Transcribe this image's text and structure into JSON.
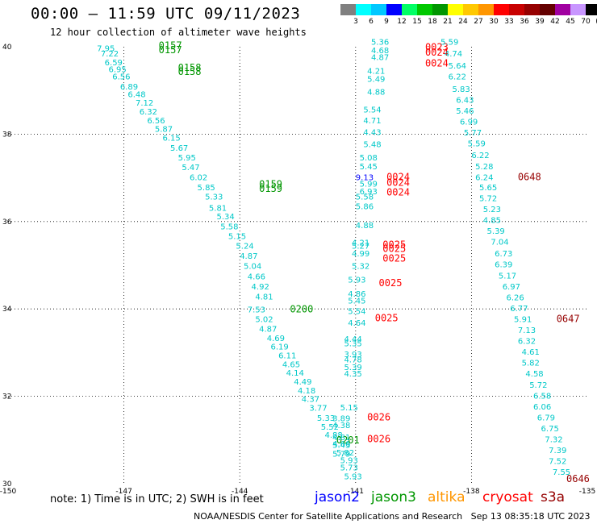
{
  "header": {
    "title": "00:00 – 11:59 UTC 09/11/2023",
    "subtitle": "12 hour collection of altimeter wave heights"
  },
  "color_scale": {
    "labels": [
      "3",
      "6",
      "9",
      "12",
      "15",
      "18",
      "21",
      "24",
      "27",
      "30",
      "33",
      "36",
      "39",
      "42",
      "45",
      "70",
      "(ft)"
    ],
    "colors": [
      "#808080",
      "#00ffff",
      "#00c8ff",
      "#0000ff",
      "#00ff64",
      "#00c800",
      "#009600",
      "#ffff00",
      "#ffc800",
      "#ff9600",
      "#ff0000",
      "#c80000",
      "#960000",
      "#640000",
      "#a000a0",
      "#c896ff",
      "#000000"
    ]
  },
  "footer": {
    "note": "note: 1) Time is in UTC; 2) SWH is in feet",
    "credit": "NOAA/NESDIS Center for Satellite Applications and Research",
    "timestamp": "Sep 13 08:35:18 UTC 2023"
  },
  "satellites": [
    {
      "name": "jason2",
      "color": "#0000ff"
    },
    {
      "name": "jason3",
      "color": "#009600"
    },
    {
      "name": "altika",
      "color": "#ff9600"
    },
    {
      "name": "cryosat",
      "color": "#ff0000"
    },
    {
      "name": "s3a",
      "color": "#960000"
    }
  ],
  "chart_data": {
    "type": "scatter",
    "title": "12 hour collection of altimeter wave heights",
    "xlabel": "",
    "ylabel": "",
    "xlim": [
      -150,
      -135
    ],
    "ylim": [
      30,
      40
    ],
    "x_ticks": [
      "-150",
      "-147",
      "-144",
      "-141",
      "-138",
      "-135"
    ],
    "x_tick_values": [
      -150,
      -147,
      -144,
      -141,
      -138,
      -135
    ],
    "y_ticks": [
      "30",
      "32",
      "34",
      "36",
      "38",
      "40"
    ],
    "y_tick_values": [
      30,
      32,
      34,
      36,
      38,
      40
    ],
    "grid": true,
    "value_color": "#00c8c8",
    "tracks": [
      {
        "satellite": "jason3",
        "points": [
          {
            "lon": -147.7,
            "lat": 39.9,
            "value": "7.95"
          },
          {
            "lon": -147.6,
            "lat": 39.78,
            "value": "7.22"
          },
          {
            "lon": -147.5,
            "lat": 39.58,
            "value": "6.59"
          },
          {
            "lon": -147.4,
            "lat": 39.42,
            "value": "6.95"
          },
          {
            "lon": -147.3,
            "lat": 39.25,
            "value": "6.56"
          },
          {
            "lon": -147.1,
            "lat": 39.02,
            "value": "6.89"
          },
          {
            "lon": -146.9,
            "lat": 38.85,
            "value": "6.48"
          },
          {
            "lon": -146.7,
            "lat": 38.65,
            "value": "7.12"
          },
          {
            "lon": -146.6,
            "lat": 38.45,
            "value": "6.32"
          },
          {
            "lon": -146.4,
            "lat": 38.25,
            "value": "6.56"
          },
          {
            "lon": -146.2,
            "lat": 38.05,
            "value": "5.87"
          },
          {
            "lon": -146.0,
            "lat": 37.85,
            "value": "6.15"
          },
          {
            "lon": -145.8,
            "lat": 37.62,
            "value": "5.67"
          },
          {
            "lon": -145.6,
            "lat": 37.4,
            "value": "5.95"
          },
          {
            "lon": -145.5,
            "lat": 37.18,
            "value": "5.47"
          },
          {
            "lon": -145.3,
            "lat": 36.95,
            "value": "6.02"
          },
          {
            "lon": -145.1,
            "lat": 36.72,
            "value": "5.85"
          },
          {
            "lon": -144.9,
            "lat": 36.5,
            "value": "5.33"
          },
          {
            "lon": -144.8,
            "lat": 36.25,
            "value": "5.81"
          },
          {
            "lon": -144.6,
            "lat": 36.05,
            "value": "5.34"
          },
          {
            "lon": -144.5,
            "lat": 35.82,
            "value": "5.58"
          },
          {
            "lon": -144.3,
            "lat": 35.6,
            "value": "5.15"
          },
          {
            "lon": -144.1,
            "lat": 35.38,
            "value": "5.24"
          },
          {
            "lon": -144.0,
            "lat": 35.15,
            "value": "4.87"
          },
          {
            "lon": -143.9,
            "lat": 34.92,
            "value": "5.04"
          },
          {
            "lon": -143.8,
            "lat": 34.68,
            "value": "4.66"
          },
          {
            "lon": -143.7,
            "lat": 34.45,
            "value": "4.92"
          },
          {
            "lon": -143.6,
            "lat": 34.22,
            "value": "4.81"
          },
          {
            "lon": -143.8,
            "lat": 33.92,
            "value": "7.53"
          },
          {
            "lon": -143.6,
            "lat": 33.7,
            "value": "5.02"
          },
          {
            "lon": -143.5,
            "lat": 33.48,
            "value": "4.87"
          },
          {
            "lon": -143.3,
            "lat": 33.27,
            "value": "4.69"
          },
          {
            "lon": -143.2,
            "lat": 33.07,
            "value": "6.19"
          },
          {
            "lon": -143.0,
            "lat": 32.87,
            "value": "6.11"
          },
          {
            "lon": -142.9,
            "lat": 32.67,
            "value": "4.65"
          },
          {
            "lon": -142.8,
            "lat": 32.47,
            "value": "4.14"
          },
          {
            "lon": -142.6,
            "lat": 32.27,
            "value": "4.49"
          },
          {
            "lon": -142.5,
            "lat": 32.07,
            "value": "4.18"
          },
          {
            "lon": -142.4,
            "lat": 31.87,
            "value": "4.37"
          },
          {
            "lon": -142.2,
            "lat": 31.67,
            "value": "3.77"
          },
          {
            "lon": -142.0,
            "lat": 31.44,
            "value": "5.33"
          },
          {
            "lon": -141.9,
            "lat": 31.24,
            "value": "5.52"
          },
          {
            "lon": -141.8,
            "lat": 31.05,
            "value": "4.88"
          },
          {
            "lon": -141.6,
            "lat": 30.85,
            "value": "4.66"
          },
          {
            "lon": -141.5,
            "lat": 30.65,
            "value": "5.82"
          },
          {
            "lon": -141.4,
            "lat": 30.47,
            "value": "5.93"
          },
          {
            "lon": -141.4,
            "lat": 30.3,
            "value": "5.73"
          },
          {
            "lon": -141.3,
            "lat": 30.1,
            "value": "5.93"
          },
          {
            "lon": -141.4,
            "lat": 29.95,
            "value": "4.84"
          },
          {
            "lon": -141.2,
            "lat": 29.92,
            "value": "5.34"
          }
        ],
        "time_labels": [
          {
            "lon": -146.1,
            "lat": 39.95,
            "label": "0157"
          },
          {
            "lon": -146.1,
            "lat": 39.85,
            "label": "0157"
          },
          {
            "lon": -145.6,
            "lat": 39.45,
            "label": "0158"
          },
          {
            "lon": -145.6,
            "lat": 39.35,
            "label": "0158"
          },
          {
            "lon": -143.5,
            "lat": 36.78,
            "label": "0159"
          },
          {
            "lon": -143.5,
            "lat": 36.68,
            "label": "0159"
          },
          {
            "lon": -142.7,
            "lat": 33.92,
            "label": "0200"
          },
          {
            "lon": -141.5,
            "lat": 30.92,
            "label": "0201"
          }
        ]
      },
      {
        "satellite": "jason3",
        "points": [
          {
            "lon": -141.4,
            "lat": 31.68,
            "value": "5.15"
          },
          {
            "lon": -141.6,
            "lat": 31.43,
            "value": "3.89"
          },
          {
            "lon": -141.6,
            "lat": 31.27,
            "value": "4.38"
          },
          {
            "lon": -141.6,
            "lat": 31.0,
            "value": "4.81"
          },
          {
            "lon": -141.6,
            "lat": 30.82,
            "value": "5.43"
          },
          {
            "lon": -141.6,
            "lat": 30.62,
            "value": "5.79"
          },
          {
            "lon": -141.3,
            "lat": 32.6,
            "value": "5.39"
          },
          {
            "lon": -141.3,
            "lat": 32.45,
            "value": "4.35"
          },
          {
            "lon": -141.3,
            "lat": 32.9,
            "value": "3.93"
          },
          {
            "lon": -141.3,
            "lat": 32.78,
            "value": "4.78"
          },
          {
            "lon": -141.3,
            "lat": 33.25,
            "value": "4.44"
          },
          {
            "lon": -141.3,
            "lat": 33.15,
            "value": "5.35"
          },
          {
            "lon": -141.2,
            "lat": 33.62,
            "value": "4.64"
          },
          {
            "lon": -141.2,
            "lat": 33.88,
            "value": "5.54"
          },
          {
            "lon": -141.2,
            "lat": 34.12,
            "value": "5.45"
          },
          {
            "lon": -141.2,
            "lat": 34.28,
            "value": "4.86"
          },
          {
            "lon": -141.2,
            "lat": 34.6,
            "value": "5.93"
          },
          {
            "lon": -141.1,
            "lat": 34.92,
            "value": "5.32"
          },
          {
            "lon": -141.1,
            "lat": 35.2,
            "value": "4.99"
          },
          {
            "lon": -141.1,
            "lat": 35.45,
            "value": "4.21"
          },
          {
            "lon": -141.1,
            "lat": 35.38,
            "value": "5.27"
          },
          {
            "lon": -141.0,
            "lat": 35.85,
            "value": "4.88"
          },
          {
            "lon": -141.0,
            "lat": 36.28,
            "value": "5.86"
          },
          {
            "lon": -141.0,
            "lat": 36.5,
            "value": "5.58"
          },
          {
            "lon": -140.9,
            "lat": 36.62,
            "value": "6.93"
          },
          {
            "lon": -140.9,
            "lat": 36.8,
            "value": "5.99"
          },
          {
            "lon": -140.9,
            "lat": 37.2,
            "value": "5.45"
          },
          {
            "lon": -140.9,
            "lat": 37.4,
            "value": "5.08"
          },
          {
            "lon": -140.8,
            "lat": 37.7,
            "value": "5.48"
          },
          {
            "lon": -140.8,
            "lat": 37.98,
            "value": "4.43"
          },
          {
            "lon": -140.8,
            "lat": 38.25,
            "value": "4.71"
          },
          {
            "lon": -140.8,
            "lat": 38.5,
            "value": "5.54"
          },
          {
            "lon": -140.7,
            "lat": 38.9,
            "value": "4.88"
          },
          {
            "lon": -140.7,
            "lat": 39.2,
            "value": "5.49"
          },
          {
            "lon": -140.7,
            "lat": 39.38,
            "value": "4.21"
          },
          {
            "lon": -140.6,
            "lat": 39.7,
            "value": "4.87"
          },
          {
            "lon": -140.6,
            "lat": 39.85,
            "value": "4.68"
          },
          {
            "lon": -140.6,
            "lat": 40.05,
            "value": "5.36"
          }
        ],
        "time_labels": []
      },
      {
        "satellite": "jason2",
        "points": [
          {
            "lon": -141.0,
            "lat": 36.95,
            "value": "9.13"
          }
        ],
        "time_labels": []
      },
      {
        "satellite": "cryosat",
        "points": [],
        "time_labels": [
          {
            "lon": -139.2,
            "lat": 39.92,
            "label": "0023"
          },
          {
            "lon": -139.2,
            "lat": 39.8,
            "label": "0024"
          },
          {
            "lon": -139.2,
            "lat": 39.55,
            "label": "0024"
          },
          {
            "lon": -140.2,
            "lat": 36.95,
            "label": "0024"
          },
          {
            "lon": -140.2,
            "lat": 36.82,
            "label": "0024"
          },
          {
            "lon": -140.2,
            "lat": 36.6,
            "label": "0024"
          },
          {
            "lon": -140.3,
            "lat": 35.4,
            "label": "0025"
          },
          {
            "lon": -140.3,
            "lat": 35.3,
            "label": "0025"
          },
          {
            "lon": -140.3,
            "lat": 35.08,
            "label": "0025"
          },
          {
            "lon": -140.4,
            "lat": 34.52,
            "label": "0025"
          },
          {
            "lon": -140.5,
            "lat": 33.72,
            "label": "0025"
          },
          {
            "lon": -140.7,
            "lat": 31.45,
            "label": "0026"
          },
          {
            "lon": -140.7,
            "lat": 30.95,
            "label": "0026"
          }
        ]
      },
      {
        "satellite": "s3a",
        "points": [
          {
            "lon": -138.8,
            "lat": 40.05,
            "value": "5.59"
          },
          {
            "lon": -138.7,
            "lat": 39.78,
            "value": "4.74"
          },
          {
            "lon": -138.6,
            "lat": 39.5,
            "value": "5.64"
          },
          {
            "lon": -138.6,
            "lat": 39.25,
            "value": "6.22"
          },
          {
            "lon": -138.5,
            "lat": 38.97,
            "value": "5.83"
          },
          {
            "lon": -138.4,
            "lat": 38.72,
            "value": "6.43"
          },
          {
            "lon": -138.4,
            "lat": 38.47,
            "value": "5.46"
          },
          {
            "lon": -138.3,
            "lat": 38.22,
            "value": "6.99"
          },
          {
            "lon": -138.2,
            "lat": 37.97,
            "value": "5.77"
          },
          {
            "lon": -138.1,
            "lat": 37.72,
            "value": "5.59"
          },
          {
            "lon": -138.0,
            "lat": 37.45,
            "value": "6.22"
          },
          {
            "lon": -137.9,
            "lat": 37.2,
            "value": "5.28"
          },
          {
            "lon": -137.9,
            "lat": 36.95,
            "value": "6.24"
          },
          {
            "lon": -137.8,
            "lat": 36.72,
            "value": "5.65"
          },
          {
            "lon": -137.8,
            "lat": 36.47,
            "value": "5.72"
          },
          {
            "lon": -137.7,
            "lat": 36.22,
            "value": "5.23"
          },
          {
            "lon": -137.7,
            "lat": 35.97,
            "value": "4.85"
          },
          {
            "lon": -137.6,
            "lat": 35.72,
            "value": "5.39"
          },
          {
            "lon": -137.5,
            "lat": 35.47,
            "value": "7.04"
          },
          {
            "lon": -137.4,
            "lat": 35.2,
            "value": "6.73"
          },
          {
            "lon": -137.4,
            "lat": 34.95,
            "value": "6.39"
          },
          {
            "lon": -137.3,
            "lat": 34.7,
            "value": "5.17"
          },
          {
            "lon": -137.2,
            "lat": 34.45,
            "value": "6.97"
          },
          {
            "lon": -137.1,
            "lat": 34.2,
            "value": "6.26"
          },
          {
            "lon": -137.0,
            "lat": 33.95,
            "value": "6.77"
          },
          {
            "lon": -136.9,
            "lat": 33.7,
            "value": "5.91"
          },
          {
            "lon": -136.8,
            "lat": 33.45,
            "value": "7.13"
          },
          {
            "lon": -136.8,
            "lat": 33.2,
            "value": "6.32"
          },
          {
            "lon": -136.7,
            "lat": 32.95,
            "value": "4.61"
          },
          {
            "lon": -136.7,
            "lat": 32.7,
            "value": "5.82"
          },
          {
            "lon": -136.6,
            "lat": 32.45,
            "value": "4.58"
          },
          {
            "lon": -136.5,
            "lat": 32.2,
            "value": "5.72"
          },
          {
            "lon": -136.4,
            "lat": 31.95,
            "value": "6.58"
          },
          {
            "lon": -136.4,
            "lat": 31.7,
            "value": "6.06"
          },
          {
            "lon": -136.3,
            "lat": 31.45,
            "value": "6.79"
          },
          {
            "lon": -136.2,
            "lat": 31.2,
            "value": "6.75"
          },
          {
            "lon": -136.1,
            "lat": 30.95,
            "value": "7.32"
          },
          {
            "lon": -136.0,
            "lat": 30.7,
            "value": "7.39"
          },
          {
            "lon": -136.0,
            "lat": 30.45,
            "value": "7.52"
          },
          {
            "lon": -135.9,
            "lat": 30.2,
            "value": "7.55"
          },
          {
            "lon": -135.9,
            "lat": 29.95,
            "value": "8.27"
          },
          {
            "lon": -135.8,
            "lat": 29.7,
            "value": "8.79"
          },
          {
            "lon": -135.8,
            "lat": 29.45,
            "value": "8.41"
          }
        ],
        "time_labels": [
          {
            "lon": -136.8,
            "lat": 36.95,
            "label": "0648"
          },
          {
            "lon": -135.8,
            "lat": 33.7,
            "label": "0647"
          },
          {
            "lon": -135.0,
            "lat": 29.45,
            "label": "0646"
          }
        ]
      }
    ]
  }
}
